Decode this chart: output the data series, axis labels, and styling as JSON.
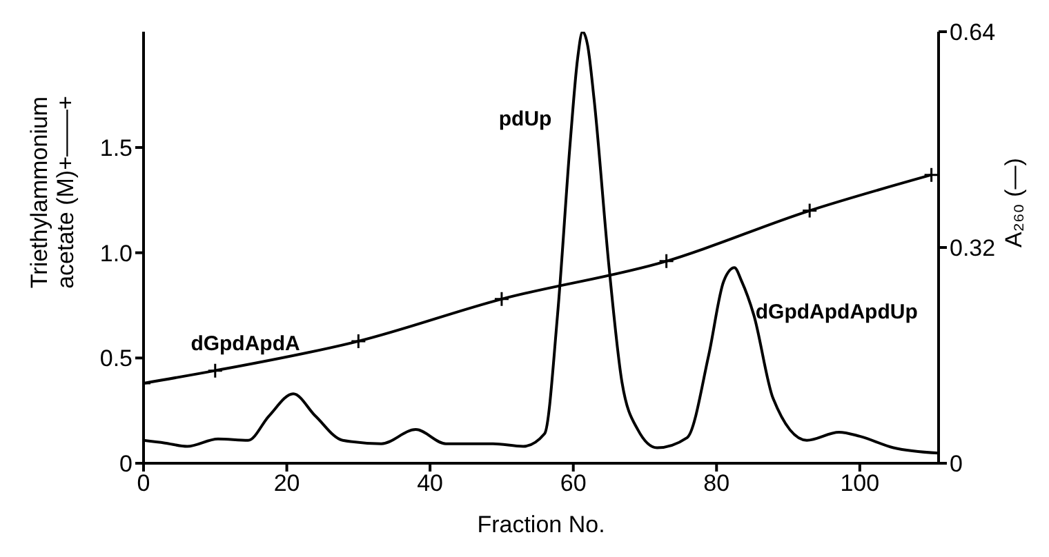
{
  "chart_data": {
    "type": "line",
    "xlabel": "Fraction No.",
    "ylabel": "Triethylammonium acetate (M)+——+",
    "y2label": "A₂₆₀ (—)",
    "xlim": [
      0,
      111
    ],
    "xticks": [
      0,
      20,
      40,
      60,
      80,
      100
    ],
    "ylim": [
      0,
      2.05
    ],
    "yticks": [
      0,
      0.5,
      {
        "value": 1,
        "label": "1.0"
      },
      1.5
    ],
    "y2lim": [
      0,
      0.64
    ],
    "y2ticks": [
      0,
      0.32,
      0.64
    ],
    "grid": false,
    "line_style": "solid",
    "series": [
      {
        "color": "#000000",
        "marker": "cross",
        "x": [
          0,
          10,
          30,
          50,
          73,
          93,
          110
        ],
        "values": [
          0.38,
          0.44,
          0.58,
          0.78,
          0.96,
          1.2,
          1.37
        ]
      },
      {
        "color": "#000000",
        "marker": "none",
        "axis": "y2",
        "x": [
          0,
          3,
          6.1,
          10.4,
          14.6,
          17.5,
          20.9,
          24,
          27.8,
          33.2,
          38,
          42.2,
          48.8,
          53,
          56,
          57.8,
          59.6,
          60.6,
          61.3,
          62,
          62.9,
          65,
          66.8,
          69,
          71.7,
          75.9,
          78.9,
          81,
          82.5,
          83.5,
          85.2,
          87.9,
          92.6,
          97.1,
          100,
          104.7,
          111
        ],
        "values": [
          0.034,
          0.03,
          0.025,
          0.036,
          0.034,
          0.07,
          0.103,
          0.07,
          0.034,
          0.029,
          0.05,
          0.029,
          0.029,
          0.025,
          0.044,
          0.22,
          0.48,
          0.6,
          0.64,
          0.62,
          0.54,
          0.29,
          0.12,
          0.05,
          0.023,
          0.038,
          0.16,
          0.27,
          0.29,
          0.27,
          0.22,
          0.096,
          0.034,
          0.046,
          0.04,
          0.023,
          0.015
        ]
      }
    ],
    "annotations": [
      "dGpdApdA",
      "pdUp",
      "dGpdApdApdUp"
    ]
  }
}
